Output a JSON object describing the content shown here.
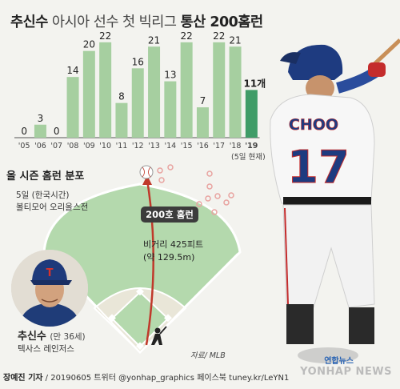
{
  "title": {
    "prefix": "추신수",
    "mid": " 아시아 선수 첫 빅리그 ",
    "suffix": "통산 200홈런"
  },
  "chart_data": {
    "type": "bar",
    "categories": [
      "'05",
      "'06",
      "'07",
      "'08",
      "'09",
      "'10",
      "'11",
      "'12",
      "'13",
      "'14",
      "'15",
      "'16",
      "'17",
      "'18",
      "'19"
    ],
    "values": [
      0,
      3,
      0,
      14,
      20,
      22,
      8,
      16,
      21,
      13,
      22,
      7,
      22,
      21,
      11
    ],
    "value_labels": [
      "0",
      "3",
      "0",
      "14",
      "20",
      "22",
      "8",
      "16",
      "21",
      "13",
      "22",
      "7",
      "22",
      "21",
      "11개"
    ],
    "note": "(5일 현재)",
    "ylim": [
      0,
      24
    ],
    "bar_color": "#a6cfa0",
    "highlight_color": "#3f9c67"
  },
  "season": {
    "title": "올 시즌 홈런 분포",
    "date": "5일 (한국시간)",
    "venue": "볼티모어 오리올스전",
    "badge": "200호 홈런",
    "distance_line1": "비거리 425피트",
    "distance_line2": "(약 129.5m)"
  },
  "player": {
    "name": "추신수",
    "age": "(만 36세)",
    "team": "텍사스 레인저스",
    "jersey_name": "CHOO",
    "jersey_number": "17",
    "cap_letter": "T"
  },
  "source": "자료/ MLB",
  "footer": {
    "author": "장예진 기자",
    "rest": " / 20190605 트위터 @yonhap_graphics  페이스북 tuney.kr/LeYN1"
  },
  "brand": {
    "small": "연합뉴스",
    "large": "YONHAP NEWS"
  },
  "colors": {
    "field": "#b4d9ad",
    "infield": "#e9e6d8",
    "arrow": "#c0392b",
    "dots": "#e8a3a0"
  }
}
